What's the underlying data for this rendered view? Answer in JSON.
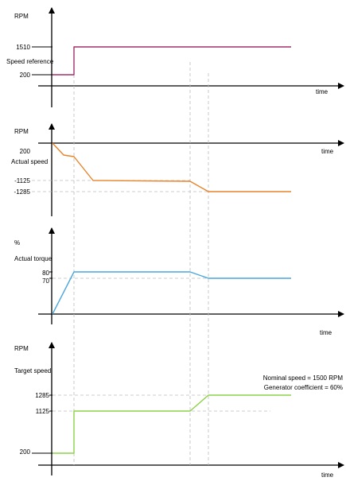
{
  "chart_data": [
    {
      "type": "line",
      "unit_label": "RPM",
      "series_label": "Speed reference",
      "xlabel": "time",
      "y_ticks": [
        "1510",
        "200"
      ],
      "color": "#a0306a",
      "step_events": [
        "t1"
      ],
      "values": [
        {
          "x": "t0",
          "y": 200
        },
        {
          "x": "t1",
          "y": 200
        },
        {
          "x": "t1",
          "y": 1510
        },
        {
          "x": "end",
          "y": 1510
        }
      ]
    },
    {
      "type": "line",
      "unit_label": "RPM",
      "series_label": "Actual speed",
      "xlabel": "time",
      "y_ticks": [
        "200",
        "-1125",
        "-1285"
      ],
      "color": "#e8842a",
      "values": [
        {
          "x": "t0",
          "y": 200
        },
        {
          "x": "t1",
          "y": -1125
        },
        {
          "x": "t2",
          "y": -1125
        },
        {
          "x": "t3",
          "y": -1285
        },
        {
          "x": "end",
          "y": -1285
        }
      ]
    },
    {
      "type": "line",
      "unit_label": "%",
      "series_label": "Actual torque",
      "xlabel": "time",
      "y_ticks": [
        "80",
        "70"
      ],
      "color": "#4aa6dc",
      "values": [
        {
          "x": "t0",
          "y": 0
        },
        {
          "x": "t1",
          "y": 80
        },
        {
          "x": "t2",
          "y": 80
        },
        {
          "x": "t3",
          "y": 70
        },
        {
          "x": "end",
          "y": 70
        }
      ]
    },
    {
      "type": "line",
      "unit_label": "RPM",
      "series_label": "Target speed",
      "xlabel": "time",
      "y_ticks": [
        "1285",
        "1125",
        "200"
      ],
      "color": "#8cd24a",
      "annotations": [
        "Nominal speed = 1500 RPM",
        "Generator coefficient = 60%"
      ],
      "values": [
        {
          "x": "t0",
          "y": 200
        },
        {
          "x": "t1",
          "y": 200
        },
        {
          "x": "t1",
          "y": 1125
        },
        {
          "x": "t2",
          "y": 1125
        },
        {
          "x": "t3",
          "y": 1285
        },
        {
          "x": "end",
          "y": 1285
        }
      ]
    }
  ]
}
